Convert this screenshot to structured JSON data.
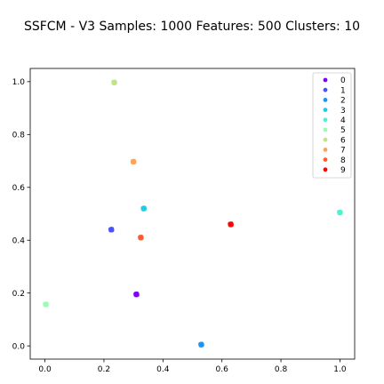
{
  "chart_data": {
    "type": "scatter",
    "title": "SSFCM - V3 Samples: 1000 Features: 500 Clusters: 10",
    "xlabel": "",
    "ylabel": "",
    "xlim": [
      -0.05,
      1.05
    ],
    "ylim": [
      -0.05,
      1.05
    ],
    "xticks": [
      "0.0",
      "0.2",
      "0.4",
      "0.6",
      "0.8",
      "1.0"
    ],
    "yticks": [
      "0.0",
      "0.2",
      "0.4",
      "0.6",
      "0.8",
      "1.0"
    ],
    "grid": false,
    "legend_position": "top-right",
    "series": [
      {
        "name": "0",
        "color": "#8000ff",
        "points": [
          [
            0.31,
            0.195
          ]
        ]
      },
      {
        "name": "1",
        "color": "#4c50fc",
        "points": [
          [
            0.225,
            0.44
          ]
        ]
      },
      {
        "name": "2",
        "color": "#1996f3",
        "points": [
          [
            0.53,
            0.005
          ]
        ]
      },
      {
        "name": "3",
        "color": "#1ccde5",
        "points": [
          [
            0.335,
            0.52
          ]
        ]
      },
      {
        "name": "4",
        "color": "#4df3ce",
        "points": [
          [
            1.0,
            0.505
          ]
        ]
      },
      {
        "name": "5",
        "color": "#99fdb1",
        "points": [
          [
            0.003,
            0.157
          ]
        ]
      },
      {
        "name": "6",
        "color": "#c0e28a",
        "points": [
          [
            0.235,
            0.997
          ]
        ]
      },
      {
        "name": "7",
        "color": "#ffa256",
        "points": [
          [
            0.3,
            0.697
          ]
        ]
      },
      {
        "name": "8",
        "color": "#ff5a30",
        "points": [
          [
            0.325,
            0.41
          ]
        ]
      },
      {
        "name": "9",
        "color": "#ff0000",
        "points": [
          [
            0.63,
            0.46
          ]
        ]
      }
    ]
  }
}
